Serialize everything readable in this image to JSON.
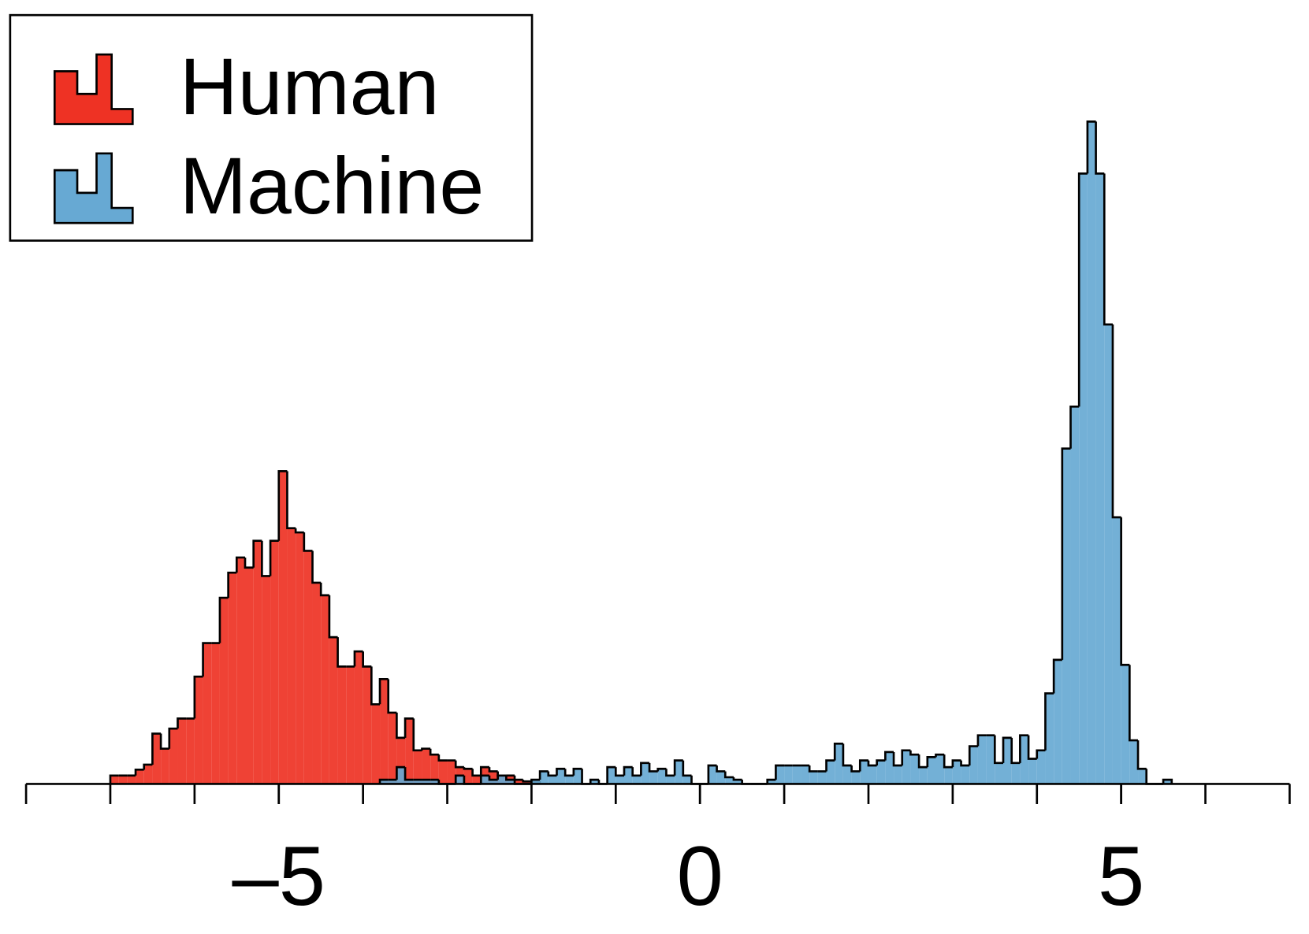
{
  "chart_data": {
    "type": "histogram",
    "xlim": [
      -8,
      7
    ],
    "ylim": [
      0,
      85
    ],
    "xticks": [
      {
        "value": -5,
        "label": "–5"
      },
      0,
      5
    ],
    "minor_xticks": [
      -8,
      -7,
      -6,
      -5,
      -4,
      -3,
      -2,
      -1,
      0,
      1,
      2,
      3,
      4,
      5,
      6,
      7
    ],
    "legend": "upper left",
    "series": [
      {
        "name": "Human",
        "color": "#ee3224",
        "bins": [
          -7.0,
          -6.9,
          -6.8,
          -6.7,
          -6.6,
          -6.5,
          -6.4,
          -6.3,
          -6.2,
          -6.1,
          -6.0,
          -5.9,
          -5.8,
          -5.7,
          -5.6,
          -5.5,
          -5.4,
          -5.3,
          -5.2,
          -5.1,
          -5.0,
          -4.9,
          -4.8,
          -4.7,
          -4.6,
          -4.5,
          -4.4,
          -4.3,
          -4.2,
          -4.1,
          -4.0,
          -3.9,
          -3.8,
          -3.7,
          -3.6,
          -3.5,
          -3.4,
          -3.3,
          -3.2,
          -3.1,
          -3.0,
          -2.9,
          -2.8,
          -2.7,
          -2.6,
          -2.5,
          -2.4,
          -2.3,
          -2.2,
          -2.1,
          -2.0,
          -1.9
        ],
        "values": [
          1,
          1,
          1,
          1.7,
          2.3,
          6,
          4.2,
          6.6,
          7.8,
          7.8,
          12.8,
          16.8,
          16.8,
          22.2,
          25.2,
          27,
          25.8,
          29,
          24.8,
          29,
          37.3,
          30.5,
          30,
          27.8,
          24,
          22.5,
          17.5,
          14,
          14,
          15.8,
          14,
          9.5,
          12.5,
          8.5,
          5.5,
          7.8,
          4,
          4.2,
          3.5,
          2.8,
          2.8,
          2,
          1.8,
          1,
          2,
          1.5,
          1,
          1,
          0.5,
          0.3,
          0.2
        ]
      },
      {
        "name": "Machine",
        "color": "#67a9d3",
        "bins": [
          -3.8,
          -3.7,
          -3.6,
          -3.5,
          -3.4,
          -3.3,
          -3.2,
          -3.1,
          -3.0,
          -2.9,
          -2.8,
          -2.7,
          -2.6,
          -2.5,
          -2.4,
          -2.3,
          -2.2,
          -2.1,
          -2.0,
          -1.9,
          -1.8,
          -1.7,
          -1.6,
          -1.5,
          -1.4,
          -1.3,
          -1.2,
          -1.1,
          -1.0,
          -0.9,
          -0.8,
          -0.7,
          -0.6,
          -0.5,
          -0.4,
          -0.3,
          -0.2,
          -0.1,
          0.0,
          0.1,
          0.2,
          0.3,
          0.4,
          0.5,
          0.6,
          0.7,
          0.8,
          0.9,
          1.0,
          1.1,
          1.2,
          1.3,
          1.4,
          1.5,
          1.6,
          1.7,
          1.8,
          1.9,
          2.0,
          2.1,
          2.2,
          2.3,
          2.4,
          2.5,
          2.6,
          2.7,
          2.8,
          2.9,
          3.0,
          3.1,
          3.2,
          3.3,
          3.4,
          3.5,
          3.6,
          3.7,
          3.8,
          3.9,
          4.0,
          4.1,
          4.2,
          4.3,
          4.4,
          4.5,
          4.6,
          4.7,
          4.8,
          4.9,
          5.0,
          5.1,
          5.2,
          5.3,
          5.4,
          5.5,
          5.6
        ],
        "values": [
          0.5,
          0.5,
          2,
          0.5,
          0.5,
          0.5,
          0.5,
          0,
          0,
          1,
          0,
          0,
          1,
          0.5,
          1,
          0.5,
          0,
          0,
          0.5,
          1.5,
          1,
          1.8,
          1,
          1.8,
          0,
          0.5,
          0,
          2,
          1,
          2,
          1,
          2.5,
          1.5,
          1.8,
          1,
          2.8,
          1,
          0,
          0,
          2.2,
          1.5,
          0.8,
          0.5,
          0,
          0,
          0,
          0.5,
          2.2,
          2.2,
          2.2,
          2.2,
          1.5,
          1.5,
          2.8,
          4.8,
          2.2,
          1.5,
          2.8,
          2.2,
          2.8,
          3.8,
          2.2,
          4,
          3.5,
          2,
          3.2,
          3.5,
          2,
          2.8,
          2.2,
          4.5,
          5.8,
          5.8,
          2.5,
          5.5,
          2.5,
          5.8,
          3,
          4,
          10.8,
          14.8,
          40,
          45,
          72.8,
          79,
          72.8,
          54.8,
          31.8,
          14.2,
          5.2,
          1.8,
          0,
          0,
          0.5
        ]
      }
    ]
  }
}
